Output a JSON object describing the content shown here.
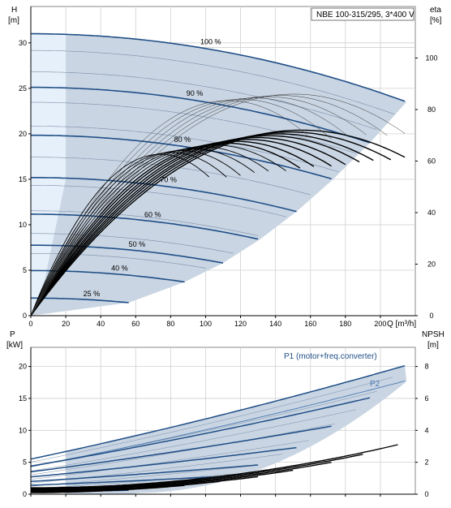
{
  "chart_data": [
    {
      "type": "line",
      "title": "NBE 100-315/295, 3*400 V",
      "xlabel": "Q [m³/h]",
      "ylabel": "H\n[m]",
      "y2label": "eta\n[%]",
      "xlim": [
        0,
        220
      ],
      "ylim": [
        0,
        34
      ],
      "y2lim": [
        0,
        120
      ],
      "x_ticks": [
        "0",
        "20",
        "40",
        "60",
        "80",
        "100",
        "120",
        "140",
        "160",
        "180",
        "200"
      ],
      "y_ticks": [
        "0",
        "5",
        "10",
        "15",
        "20",
        "25",
        "30"
      ],
      "y2_ticks": [
        "0",
        "20",
        "40",
        "60",
        "80",
        "100"
      ],
      "grid": true,
      "operating_area_color": "#c9d5e3",
      "min_speed_zone_color": "#e6f0fa",
      "head_color": "#1f4e86",
      "efficiency_color": "#000000",
      "head_curves": [
        {
          "label": "100 %",
          "speed": 1.0,
          "q_max": 215,
          "label_q": 97
        },
        {
          "label": "90 %",
          "speed": 0.9,
          "q_max": 194,
          "label_q": 89
        },
        {
          "label": "80 %",
          "speed": 0.8,
          "q_max": 173,
          "label_q": 82
        },
        {
          "label": "70 %",
          "speed": 0.7,
          "q_max": 152,
          "label_q": 74
        },
        {
          "label": "60 %",
          "speed": 0.6,
          "q_max": 131,
          "label_q": 65
        },
        {
          "label": "50 %",
          "speed": 0.5,
          "q_max": 110,
          "label_q": 56
        },
        {
          "label": "40 %",
          "speed": 0.4,
          "q_max": 88,
          "label_q": 46
        },
        {
          "label": "25 %",
          "speed": 0.25,
          "q_max": 56,
          "label_q": 30
        }
      ],
      "thin_speeds": [
        0.47,
        0.54,
        0.61,
        0.68,
        0.75,
        0.82,
        0.87,
        0.93,
        0.97
      ],
      "efficiency_curves": [
        {
          "speed": 1.0,
          "q_max": 215
        },
        {
          "speed": 0.96,
          "q_max": 206
        },
        {
          "speed": 0.92,
          "q_max": 197
        },
        {
          "speed": 0.88,
          "q_max": 189
        },
        {
          "speed": 0.84,
          "q_max": 180
        },
        {
          "speed": 0.8,
          "q_max": 172
        },
        {
          "speed": 0.76,
          "q_max": 163
        },
        {
          "speed": 0.72,
          "q_max": 155
        },
        {
          "speed": 0.68,
          "q_max": 146
        },
        {
          "speed": 0.64,
          "q_max": 137
        },
        {
          "speed": 0.6,
          "q_max": 129
        },
        {
          "speed": 0.56,
          "q_max": 120
        },
        {
          "speed": 0.52,
          "q_max": 112
        },
        {
          "speed": 0.48,
          "q_max": 103
        }
      ]
    },
    {
      "type": "line",
      "xlabel": "",
      "ylabel": "P\n[kW]",
      "y2label": "NPSH\n[m]",
      "xlim": [
        0,
        220
      ],
      "ylim": [
        0,
        23
      ],
      "y2lim": [
        0,
        9.2
      ],
      "y_ticks": [
        "0",
        "5",
        "10",
        "15",
        "20"
      ],
      "y2_ticks": [
        "0",
        "2",
        "4",
        "6",
        "8"
      ],
      "grid": true,
      "power_area_color": "#c9d5e3",
      "annotations": [
        "P1 (motor+freq.converter)",
        "P2"
      ],
      "p1_curves": [
        {
          "speed": 1.0,
          "p0": 5.5,
          "p_end": 20.2,
          "q_end": 215
        },
        {
          "speed": 0.9,
          "p0": 4.4,
          "p_end": 15.1,
          "q_end": 194
        },
        {
          "speed": 0.8,
          "p0": 3.5,
          "p_end": 10.7,
          "q_end": 173
        },
        {
          "speed": 0.7,
          "p0": 2.7,
          "p_end": 7.3,
          "q_end": 152
        },
        {
          "speed": 0.6,
          "p0": 2.0,
          "p_end": 4.6,
          "q_end": 131
        },
        {
          "speed": 0.5,
          "p0": 1.4,
          "p_end": 2.8,
          "q_end": 110
        },
        {
          "speed": 0.4,
          "p0": 0.9,
          "p_end": 1.5,
          "q_end": 88
        },
        {
          "speed": 0.25,
          "p0": 0.4,
          "p_end": 0.6,
          "q_end": 56
        }
      ],
      "p2_curve": {
        "p0": 4.3,
        "p_end": 17.8,
        "q_end": 215
      },
      "npsh_curves": [
        {
          "speed": 1.0,
          "n0": 0.4,
          "n_end": 3.1,
          "q_end": 210
        },
        {
          "speed": 0.9,
          "n0": 0.35,
          "n_end": 2.5,
          "q_end": 190
        },
        {
          "speed": 0.8,
          "n0": 0.3,
          "n_end": 2.0,
          "q_end": 172
        },
        {
          "speed": 0.7,
          "n0": 0.25,
          "n_end": 1.5,
          "q_end": 150
        },
        {
          "speed": 0.6,
          "n0": 0.2,
          "n_end": 1.1,
          "q_end": 130
        },
        {
          "speed": 0.5,
          "n0": 0.15,
          "n_end": 0.8,
          "q_end": 108
        },
        {
          "speed": 0.4,
          "n0": 0.12,
          "n_end": 0.55,
          "q_end": 88
        },
        {
          "speed": 0.25,
          "n0": 0.1,
          "n_end": 0.3,
          "q_end": 56
        }
      ]
    }
  ]
}
